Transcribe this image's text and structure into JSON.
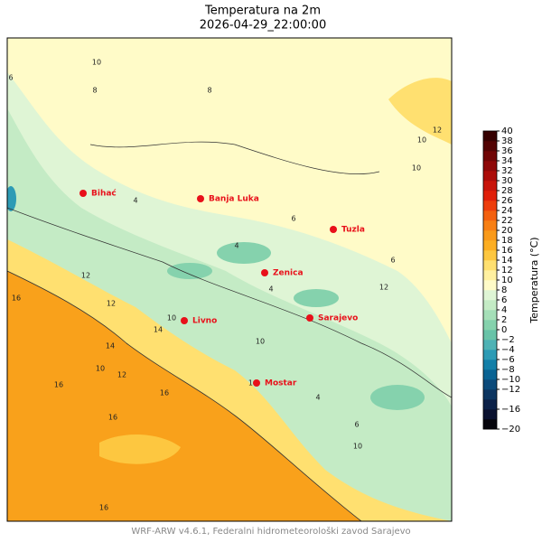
{
  "title": "Temperatura na 2m",
  "subtitle": "2026-04-29_22:00:00",
  "footer": "WRF-ARW v4.6.1, Federalni hidrometeorološki zavod Sarajevo",
  "cities": [
    "Bihać",
    "Banja Luka",
    "Tuzla",
    "Zenica",
    "Livno",
    "Sarajevo",
    "Mostar"
  ],
  "contour_labels": [
    10,
    6,
    8,
    8,
    10,
    12,
    10,
    6,
    4,
    4,
    6,
    4,
    12,
    10,
    12,
    14,
    16,
    16,
    14,
    16,
    10,
    14,
    12,
    10,
    4,
    6,
    16,
    16,
    10,
    12
  ],
  "colorbar": {
    "label": "Temperatura (°C)",
    "ticks": [
      {
        "value": -20,
        "label": "−20"
      },
      {
        "value": -16,
        "label": "−16"
      },
      {
        "value": -12,
        "label": "−12"
      },
      {
        "value": -10,
        "label": "−10"
      },
      {
        "value": -8,
        "label": "−8"
      },
      {
        "value": -6,
        "label": "−6"
      },
      {
        "value": -4,
        "label": "−4"
      },
      {
        "value": -2,
        "label": "−2"
      },
      0,
      2,
      4,
      6,
      8,
      10,
      12,
      14,
      16,
      18,
      20,
      22,
      24,
      26,
      28,
      30,
      32,
      34,
      36,
      38,
      40
    ],
    "lim": [
      -20,
      40
    ],
    "colors": [
      "#06050c",
      "#0b1230",
      "#0c2148",
      "#0d3560",
      "#0c4a7a",
      "#0a6393",
      "#137fa8",
      "#2d9bb5",
      "#4eb2b5",
      "#68c3a8",
      "#85d2ad",
      "#a5dfb8",
      "#c4ebc5",
      "#dff5d5",
      "#fffbc8",
      "#fff0a0",
      "#ffe070",
      "#fdc740",
      "#fcae22",
      "#f99a1a",
      "#f77f14",
      "#f3600f",
      "#ed3d0c",
      "#e01f0a",
      "#c8140a",
      "#ac0c09",
      "#8e0808",
      "#700505",
      "#520303",
      "#360101"
    ]
  }
}
